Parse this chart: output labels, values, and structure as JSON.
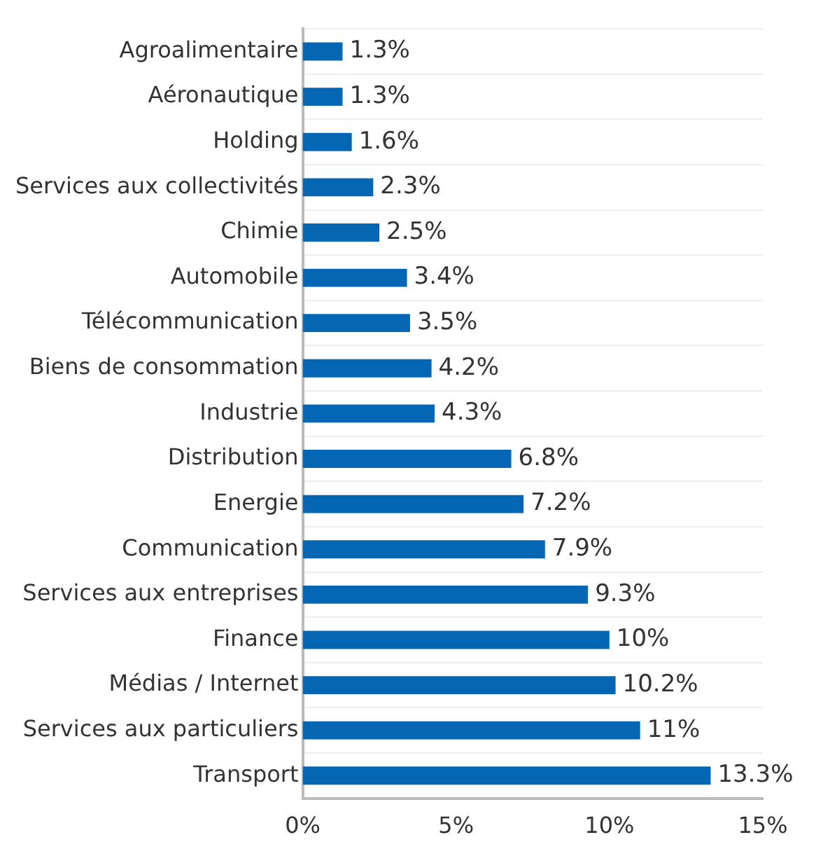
{
  "chart_data": {
    "type": "bar",
    "orientation": "horizontal",
    "categories": [
      "Agroalimentaire",
      "Aéronautique",
      "Holding",
      "Services aux collectivités",
      "Chimie",
      "Automobile",
      "Télécommunication",
      "Biens de consommation",
      "Industrie",
      "Distribution",
      "Energie",
      "Communication",
      "Services aux entreprises",
      "Finance",
      "Médias / Internet",
      "Services aux particuliers",
      "Transport"
    ],
    "values": [
      1.3,
      1.3,
      1.6,
      2.3,
      2.5,
      3.4,
      3.5,
      4.2,
      4.3,
      6.8,
      7.2,
      7.9,
      9.3,
      10,
      10.2,
      11,
      13.3
    ],
    "value_labels": [
      "1.3%",
      "1.3%",
      "1.6%",
      "2.3%",
      "2.5%",
      "3.4%",
      "3.5%",
      "4.2%",
      "4.3%",
      "6.8%",
      "7.2%",
      "7.9%",
      "9.3%",
      "10%",
      "10.2%",
      "11%",
      "13.3%"
    ],
    "color": "#0566b4",
    "xlim": [
      0,
      15
    ],
    "xticks": [
      {
        "value": 0,
        "label": "0%"
      },
      {
        "value": 5,
        "label": "5%"
      },
      {
        "value": 10,
        "label": "10%"
      },
      {
        "value": 15,
        "label": "15%"
      }
    ],
    "grid": "y",
    "legend": false
  }
}
